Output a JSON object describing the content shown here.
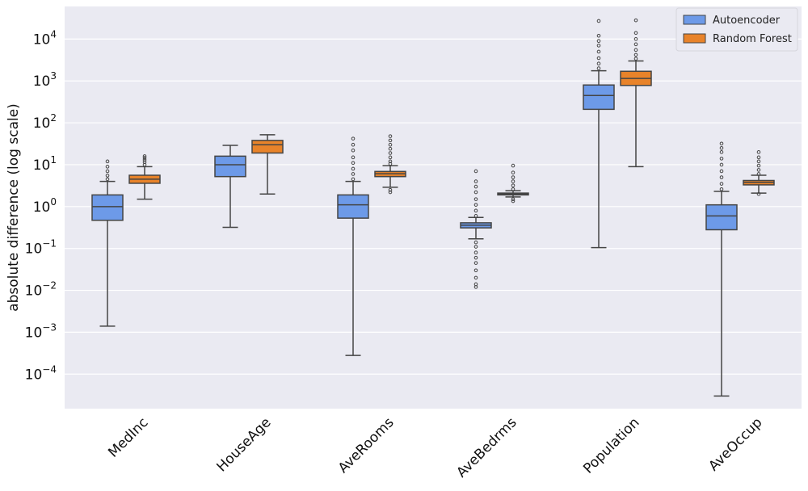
{
  "chart_data": {
    "type": "box",
    "title": "",
    "xlabel": "",
    "ylabel": "absolute difference (log scale)",
    "yscale": "log",
    "ylim": [
      1.5e-05,
      60000
    ],
    "yticks": [
      {
        "value": 0.0001,
        "base": "10",
        "exp": "−4"
      },
      {
        "value": 0.001,
        "base": "10",
        "exp": "−3"
      },
      {
        "value": 0.01,
        "base": "10",
        "exp": "−2"
      },
      {
        "value": 0.1,
        "base": "10",
        "exp": "−1"
      },
      {
        "value": 1,
        "base": "10",
        "exp": "0"
      },
      {
        "value": 10,
        "base": "10",
        "exp": "1"
      },
      {
        "value": 100,
        "base": "10",
        "exp": "2"
      },
      {
        "value": 1000,
        "base": "10",
        "exp": "3"
      },
      {
        "value": 10000,
        "base": "10",
        "exp": "4"
      }
    ],
    "grid": true,
    "legend_position": "top-right",
    "categories": [
      "MedInc",
      "HouseAge",
      "AveRooms",
      "AveBedrms",
      "Population",
      "AveOccup"
    ],
    "series": [
      {
        "name": "Autoencoder",
        "color": "#6d9ae8",
        "boxes": [
          {
            "whislo": 0.0014,
            "q1": 0.47,
            "med": 1.0,
            "q3": 1.9,
            "whishi": 4.0,
            "fliers": [
              4.5,
              5.5,
              7,
              9,
              12
            ]
          },
          {
            "whislo": 0.32,
            "q1": 5.2,
            "med": 10,
            "q3": 16,
            "whishi": 29,
            "fliers": []
          },
          {
            "whislo": 0.00028,
            "q1": 0.53,
            "med": 1.1,
            "q3": 1.9,
            "whishi": 4.0,
            "fliers": [
              4.5,
              6,
              8,
              11,
              15,
              22,
              30,
              42
            ]
          },
          {
            "whislo": 0.17,
            "q1": 0.31,
            "med": 0.36,
            "q3": 0.41,
            "whishi": 0.55,
            "fliers": [
              0.012,
              0.014,
              0.02,
              0.03,
              0.045,
              0.06,
              0.08,
              0.11,
              0.14,
              0.6,
              0.8,
              1.1,
              1.5,
              2.2,
              3.0,
              4.0,
              7.0
            ]
          },
          {
            "whislo": 0.105,
            "q1": 210,
            "med": 450,
            "q3": 800,
            "whishi": 1750,
            "fliers": [
              2000,
              2600,
              3500,
              5000,
              7000,
              9000,
              12000,
              27000
            ]
          },
          {
            "whislo": 3e-05,
            "q1": 0.28,
            "med": 0.6,
            "q3": 1.1,
            "whishi": 2.3,
            "fliers": [
              2.6,
              3.5,
              5,
              7,
              10,
              14,
              20,
              25,
              32
            ]
          }
        ]
      },
      {
        "name": "Random Forest",
        "color": "#e8832a",
        "boxes": [
          {
            "whislo": 1.5,
            "q1": 3.6,
            "med": 4.5,
            "q3": 5.6,
            "whishi": 9.0,
            "fliers": [
              10,
              11.5,
              13,
              14.5,
              16
            ]
          },
          {
            "whislo": 2.0,
            "q1": 19,
            "med": 30,
            "q3": 38,
            "whishi": 52,
            "fliers": []
          },
          {
            "whislo": 2.9,
            "q1": 5.2,
            "med": 6.1,
            "q3": 6.9,
            "whishi": 9.5,
            "fliers": [
              2.2,
              2.5,
              10.5,
              12,
              15,
              19,
              24,
              30,
              38,
              48
            ]
          },
          {
            "whislo": 1.7,
            "q1": 1.9,
            "med": 2.0,
            "q3": 2.1,
            "whishi": 2.4,
            "fliers": [
              1.35,
              1.5,
              2.6,
              3.2,
              4.0,
              5.0,
              6.5,
              9.5
            ]
          },
          {
            "whislo": 9.0,
            "q1": 780,
            "med": 1150,
            "q3": 1700,
            "whishi": 3000,
            "fliers": [
              3400,
              4200,
              5500,
              7500,
              10000,
              14000,
              28000
            ]
          },
          {
            "whislo": 2.1,
            "q1": 3.3,
            "med": 3.8,
            "q3": 4.2,
            "whishi": 5.6,
            "fliers": [
              2.0,
              6.0,
              7.5,
              9.5,
              12,
              15,
              20
            ]
          }
        ]
      }
    ]
  }
}
